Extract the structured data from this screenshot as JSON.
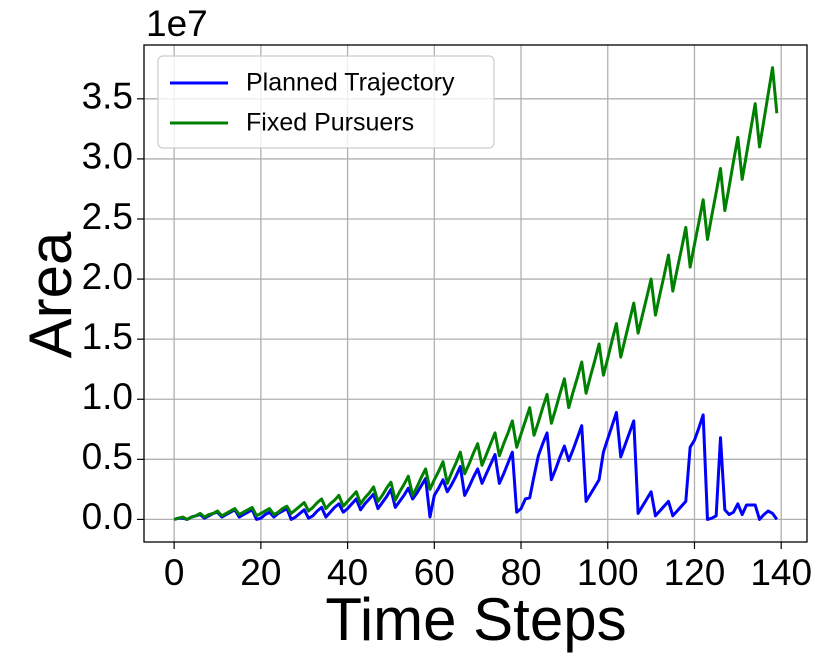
{
  "chart_data": {
    "type": "line",
    "xlabel": "Time Steps",
    "ylabel": "Area",
    "offset_text": "1e7",
    "x": [
      0,
      1,
      2,
      3,
      4,
      5,
      6,
      7,
      8,
      9,
      10,
      11,
      12,
      13,
      14,
      15,
      16,
      17,
      18,
      19,
      20,
      21,
      22,
      23,
      24,
      25,
      26,
      27,
      28,
      29,
      30,
      31,
      32,
      33,
      34,
      35,
      36,
      37,
      38,
      39,
      40,
      41,
      42,
      43,
      44,
      45,
      46,
      47,
      48,
      49,
      50,
      51,
      52,
      53,
      54,
      55,
      56,
      57,
      58,
      59,
      60,
      61,
      62,
      63,
      64,
      65,
      66,
      67,
      68,
      69,
      70,
      71,
      72,
      73,
      74,
      75,
      76,
      77,
      78,
      79,
      80,
      81,
      82,
      83,
      84,
      85,
      86,
      87,
      88,
      89,
      90,
      91,
      92,
      93,
      94,
      95,
      96,
      97,
      98,
      99,
      100,
      101,
      102,
      103,
      104,
      105,
      106,
      107,
      108,
      109,
      110,
      111,
      112,
      113,
      114,
      115,
      116,
      117,
      118,
      119,
      120,
      121,
      122,
      123,
      124,
      125,
      126,
      127,
      128,
      129,
      130,
      131,
      132,
      133,
      134,
      135,
      136,
      137,
      138,
      139
    ],
    "series": [
      {
        "name": "Planned Trajectory",
        "color": "#0000ff",
        "values": [
          0,
          0.01,
          0.01,
          0.0,
          0.02,
          0.03,
          0.04,
          0.01,
          0.03,
          0.05,
          0.06,
          0.02,
          0.04,
          0.06,
          0.08,
          0.02,
          0.04,
          0.06,
          0.08,
          0.0,
          0.01,
          0.04,
          0.06,
          0.02,
          0.05,
          0.07,
          0.09,
          0.0,
          0.02,
          0.05,
          0.08,
          0.01,
          0.03,
          0.07,
          0.1,
          0.02,
          0.06,
          0.1,
          0.13,
          0.06,
          0.09,
          0.13,
          0.17,
          0.08,
          0.13,
          0.17,
          0.21,
          0.09,
          0.14,
          0.19,
          0.25,
          0.1,
          0.15,
          0.2,
          0.26,
          0.17,
          0.22,
          0.28,
          0.34,
          0.02,
          0.2,
          0.26,
          0.33,
          0.23,
          0.29,
          0.36,
          0.44,
          0.2,
          0.27,
          0.35,
          0.42,
          0.3,
          0.38,
          0.46,
          0.54,
          0.3,
          0.38,
          0.47,
          0.56,
          0.06,
          0.09,
          0.17,
          0.18,
          0.36,
          0.53,
          0.63,
          0.72,
          0.33,
          0.42,
          0.52,
          0.61,
          0.49,
          0.58,
          0.68,
          0.78,
          0.15,
          0.21,
          0.27,
          0.33,
          0.56,
          0.67,
          0.78,
          0.89,
          0.52,
          0.62,
          0.72,
          0.82,
          0.05,
          0.11,
          0.17,
          0.23,
          0.03,
          0.07,
          0.11,
          0.15,
          0.03,
          0.07,
          0.11,
          0.15,
          0.6,
          0.66,
          0.76,
          0.87,
          0.0,
          0.01,
          0.03,
          0.68,
          0.08,
          0.04,
          0.06,
          0.13,
          0.04,
          0.12,
          0.12,
          0.12,
          0.0,
          0.04,
          0.07,
          0.05,
          0.0
        ]
      },
      {
        "name": "Fixed Pursuers",
        "color": "#008000",
        "values": [
          0,
          0.01,
          0.02,
          0.0,
          0.02,
          0.03,
          0.05,
          0.02,
          0.04,
          0.05,
          0.07,
          0.03,
          0.05,
          0.07,
          0.09,
          0.04,
          0.06,
          0.08,
          0.1,
          0.03,
          0.05,
          0.07,
          0.09,
          0.04,
          0.06,
          0.09,
          0.11,
          0.05,
          0.08,
          0.11,
          0.14,
          0.07,
          0.1,
          0.14,
          0.17,
          0.09,
          0.13,
          0.16,
          0.2,
          0.11,
          0.15,
          0.19,
          0.23,
          0.13,
          0.18,
          0.22,
          0.27,
          0.15,
          0.2,
          0.26,
          0.31,
          0.16,
          0.23,
          0.29,
          0.36,
          0.2,
          0.27,
          0.35,
          0.42,
          0.25,
          0.33,
          0.4,
          0.48,
          0.3,
          0.39,
          0.47,
          0.56,
          0.38,
          0.46,
          0.55,
          0.63,
          0.45,
          0.54,
          0.63,
          0.72,
          0.53,
          0.63,
          0.72,
          0.82,
          0.6,
          0.71,
          0.82,
          0.93,
          0.7,
          0.81,
          0.93,
          1.04,
          0.8,
          0.92,
          1.05,
          1.17,
          0.93,
          1.06,
          1.18,
          1.31,
          1.05,
          1.19,
          1.32,
          1.46,
          1.2,
          1.34,
          1.49,
          1.63,
          1.35,
          1.5,
          1.65,
          1.8,
          1.55,
          1.7,
          1.85,
          2.0,
          1.7,
          1.87,
          2.03,
          2.2,
          1.9,
          2.08,
          2.25,
          2.43,
          2.1,
          2.29,
          2.47,
          2.66,
          2.33,
          2.53,
          2.72,
          2.92,
          2.57,
          2.77,
          2.98,
          3.18,
          2.83,
          3.04,
          3.25,
          3.46,
          3.1,
          3.32,
          3.54,
          3.76,
          3.38
        ]
      }
    ],
    "xlim": [
      -6.95,
      145.95
    ],
    "ylim": [
      -0.188,
      3.948
    ],
    "xticks": [
      0,
      20,
      40,
      60,
      80,
      100,
      120,
      140
    ],
    "yticks": [
      {
        "value": 0,
        "label": "0.0"
      },
      {
        "value": 0.5,
        "label": "0.5"
      },
      {
        "value": 1,
        "label": "1.0"
      },
      {
        "value": 1.5,
        "label": "1.5"
      },
      {
        "value": 2,
        "label": "2.0"
      },
      {
        "value": 2.5,
        "label": "2.5"
      },
      {
        "value": 3,
        "label": "3.0"
      },
      {
        "value": 3.5,
        "label": "3.5"
      }
    ],
    "grid": true,
    "legend": "upper-left"
  }
}
